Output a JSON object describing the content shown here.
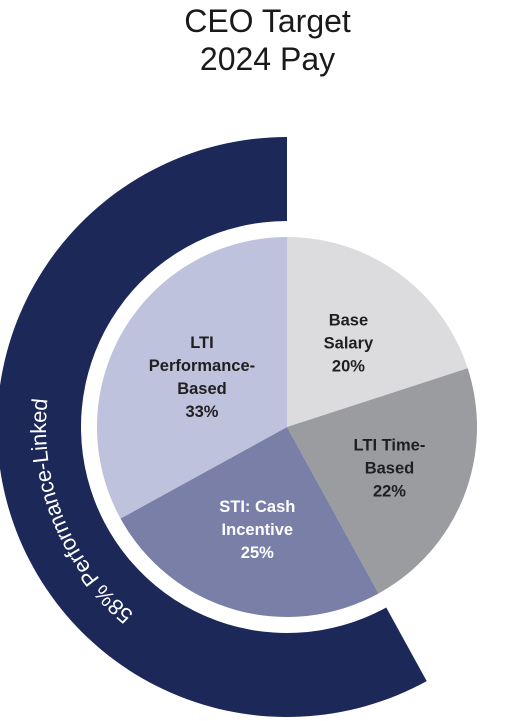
{
  "title_lines": [
    "CEO Target",
    "2024 Pay"
  ],
  "chart_data": {
    "type": "pie",
    "title": "CEO Target 2024 Pay",
    "start_angle_deg": 0,
    "slices": [
      {
        "label_lines": [
          "Base",
          "Salary",
          "20%"
        ],
        "value": 20,
        "color": "#dcdcdf",
        "text_color": "#1f1f1f"
      },
      {
        "label_lines": [
          "LTI Time-",
          "Based",
          "22%"
        ],
        "value": 22,
        "color": "#9b9ca0",
        "text_color": "#1f1f1f"
      },
      {
        "label_lines": [
          "STI: Cash",
          "Incentive",
          "25%"
        ],
        "value": 25,
        "color": "#7a7fa8",
        "text_color": "#ffffff"
      },
      {
        "label_lines": [
          "LTI",
          "Performance-",
          "Based",
          "33%"
        ],
        "value": 33,
        "color": "#bfc2dc",
        "text_color": "#1f1f1f"
      }
    ],
    "outer_band": {
      "label": "58% Performance-Linked",
      "value": 58,
      "color": "#1b2858",
      "text_color": "#ffffff",
      "covers": [
        "STI: Cash Incentive",
        "LTI Performance-Based"
      ]
    }
  }
}
